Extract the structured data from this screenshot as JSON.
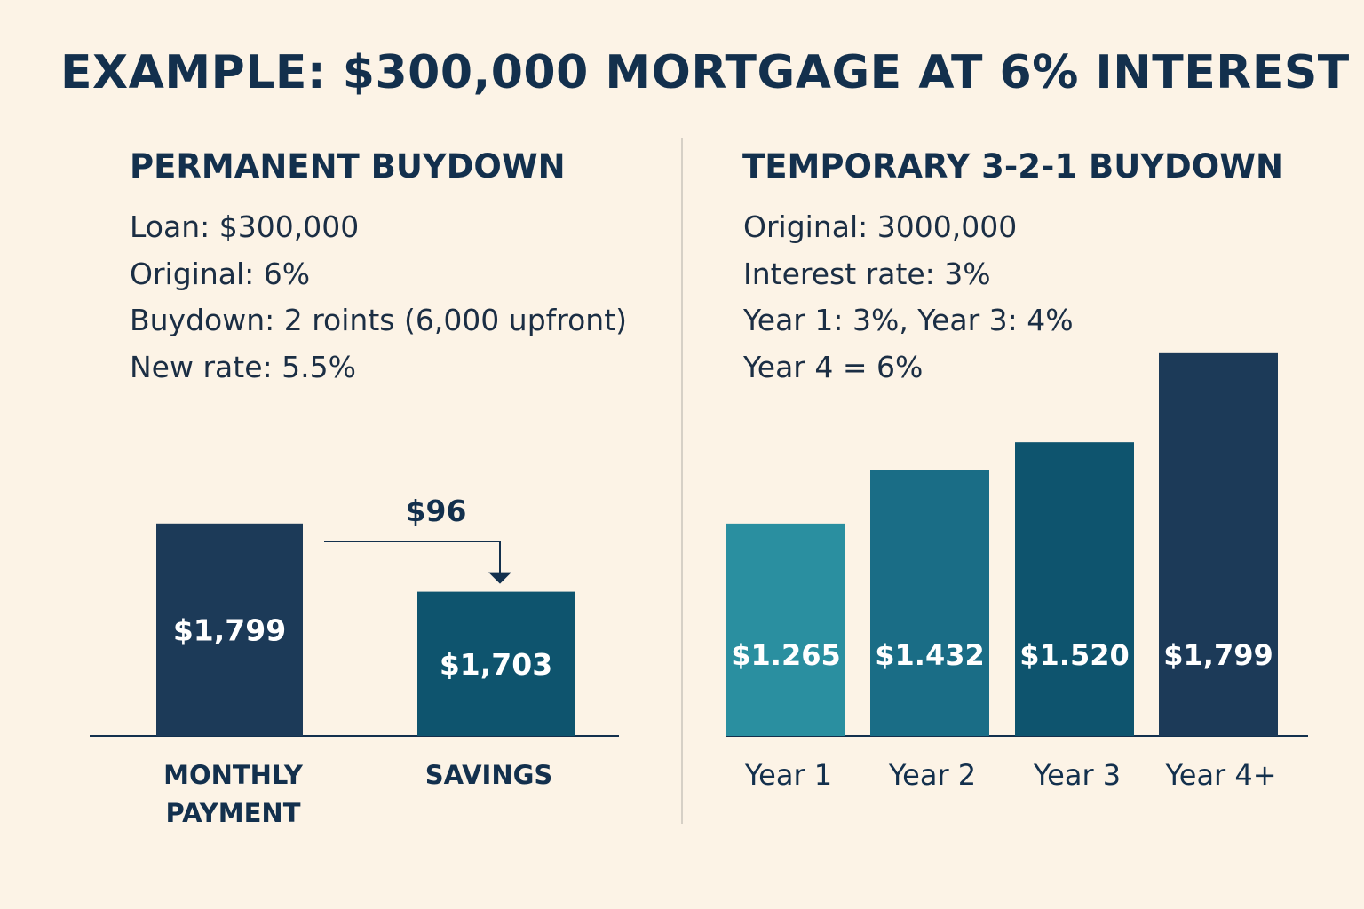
{
  "title": "EXAMPLE: $300,000 MORTGAGE AT 6% INTEREST",
  "colors": {
    "background": "#fcf3e6",
    "navy": "#1c3a58",
    "dark_teal": "#0e546e",
    "teal": "#1a6d86",
    "light_teal": "#2a8fa0",
    "text": "#13304d"
  },
  "permanent": {
    "heading": "PERMANENT BUYDOWN",
    "lines": [
      "Loan: $300,000",
      "Original: 6%",
      "Buydown: 2 roints (6,000 upfront)",
      "New rate:  5.5%"
    ]
  },
  "temporary": {
    "heading": "TEMPORARY 3-2-1 BUYDOWN",
    "lines": [
      "Original: 3000,000",
      "Interest rate: 3%",
      "Year 1: 3%, Year 3: 4%",
      "Year 4 = 6%"
    ]
  },
  "chart_data": [
    {
      "type": "bar",
      "categories": [
        "MONTHLY PAYMENT",
        "SAVINGS"
      ],
      "category_lines": [
        [
          "MONTHLY",
          "PAYMENT"
        ],
        [
          "SAVINGS"
        ]
      ],
      "values": [
        1799,
        1703
      ],
      "value_labels": [
        "$1,799",
        "$1,703"
      ],
      "colors": [
        "#1c3a58",
        "#0e546e"
      ],
      "annotation": "$96",
      "title": "",
      "xlabel": "",
      "ylabel": "",
      "ylim": [
        1500,
        1850
      ],
      "grid": false
    },
    {
      "type": "bar",
      "categories": [
        "Year 1",
        "Year 2",
        "Year 3",
        "Year 4+"
      ],
      "values": [
        1265,
        1432,
        1520,
        1799
      ],
      "value_labels": [
        "$1.265",
        "$1.432",
        "$1.520",
        "$1,799"
      ],
      "colors": [
        "#2a8fa0",
        "#1a6d86",
        "#0e546e",
        "#1c3a58"
      ],
      "title": "",
      "xlabel": "",
      "ylabel": "",
      "ylim": [
        600,
        1910
      ],
      "grid": false
    }
  ]
}
